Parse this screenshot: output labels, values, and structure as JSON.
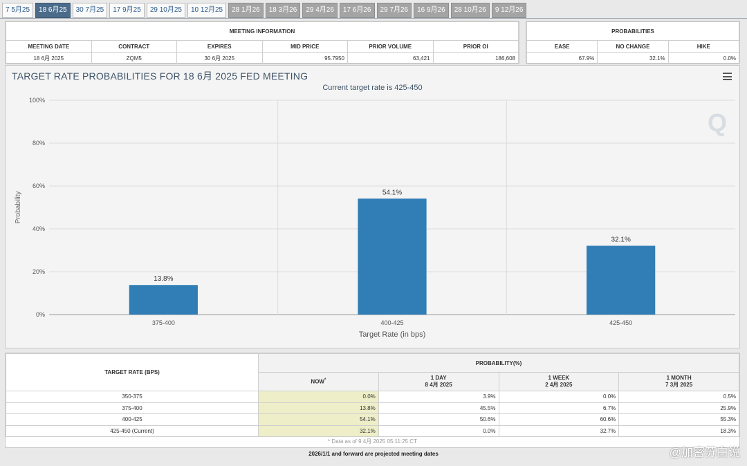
{
  "tabs": [
    {
      "label": "7 5月25",
      "state": "normal"
    },
    {
      "label": "18 6月25",
      "state": "active"
    },
    {
      "label": "30 7月25",
      "state": "normal"
    },
    {
      "label": "17 9月25",
      "state": "normal"
    },
    {
      "label": "29 10月25",
      "state": "normal"
    },
    {
      "label": "10 12月25",
      "state": "normal"
    },
    {
      "label": "28 1月26",
      "state": "future"
    },
    {
      "label": "18 3月26",
      "state": "future"
    },
    {
      "label": "29 4月26",
      "state": "future"
    },
    {
      "label": "17 6月26",
      "state": "future"
    },
    {
      "label": "29 7月26",
      "state": "future"
    },
    {
      "label": "16 9月26",
      "state": "future"
    },
    {
      "label": "28 10月26",
      "state": "future"
    },
    {
      "label": "9 12月26",
      "state": "future"
    }
  ],
  "meeting_info": {
    "caption": "MEETING INFORMATION",
    "headers": [
      "MEETING DATE",
      "CONTRACT",
      "EXPIRES",
      "MID PRICE",
      "PRIOR VOLUME",
      "PRIOR OI"
    ],
    "values": [
      "18 6月 2025",
      "ZQM5",
      "30 6月 2025",
      "95.7950",
      "63,421",
      "186,608"
    ]
  },
  "probabilities": {
    "caption": "PROBABILITIES",
    "headers": [
      "EASE",
      "NO CHANGE",
      "HIKE"
    ],
    "values": [
      "67.9%",
      "32.1%",
      "0.0%"
    ]
  },
  "chart": {
    "title": "TARGET RATE PROBABILITIES FOR 18 6月 2025 FED MEETING",
    "subtitle": "Current target rate is 425-450"
  },
  "chart_data": {
    "type": "bar",
    "categories": [
      "375-400",
      "400-425",
      "425-450"
    ],
    "values": [
      13.8,
      54.1,
      32.1
    ],
    "data_labels": [
      "13.8%",
      "54.1%",
      "32.1%"
    ],
    "xlabel": "Target Rate (in bps)",
    "ylabel": "Probability",
    "ylim": [
      0,
      100
    ],
    "yticks": [
      "0%",
      "20%",
      "40%",
      "60%",
      "80%",
      "100%"
    ],
    "bar_color": "#317db5",
    "grid": true
  },
  "prob_table": {
    "rate_header": "TARGET RATE (BPS)",
    "prob_header": "PROBABILITY(%)",
    "col_now": "NOW",
    "col_now_mark": "*",
    "col_1day": "1 DAY",
    "col_1day_date": "8 4月 2025",
    "col_1week": "1 WEEK",
    "col_1week_date": "2 4月 2025",
    "col_1month": "1 MONTH",
    "col_1month_date": "7 3月 2025",
    "rows": [
      {
        "rate": "350-375",
        "now": "0.0%",
        "day": "3.9%",
        "week": "0.0%",
        "month": "0.5%"
      },
      {
        "rate": "375-400",
        "now": "13.8%",
        "day": "45.5%",
        "week": "6.7%",
        "month": "25.9%"
      },
      {
        "rate": "400-425",
        "now": "54.1%",
        "day": "50.6%",
        "week": "60.6%",
        "month": "55.3%"
      },
      {
        "rate": "425-450 (Current)",
        "now": "32.1%",
        "day": "0.0%",
        "week": "32.7%",
        "month": "18.3%"
      }
    ],
    "asof": "* Data as of 9 4月 2025 05:11:25 CT"
  },
  "footer": "2026/1/1 and forward are projected meeting dates",
  "watermark": "@加密苏白说"
}
